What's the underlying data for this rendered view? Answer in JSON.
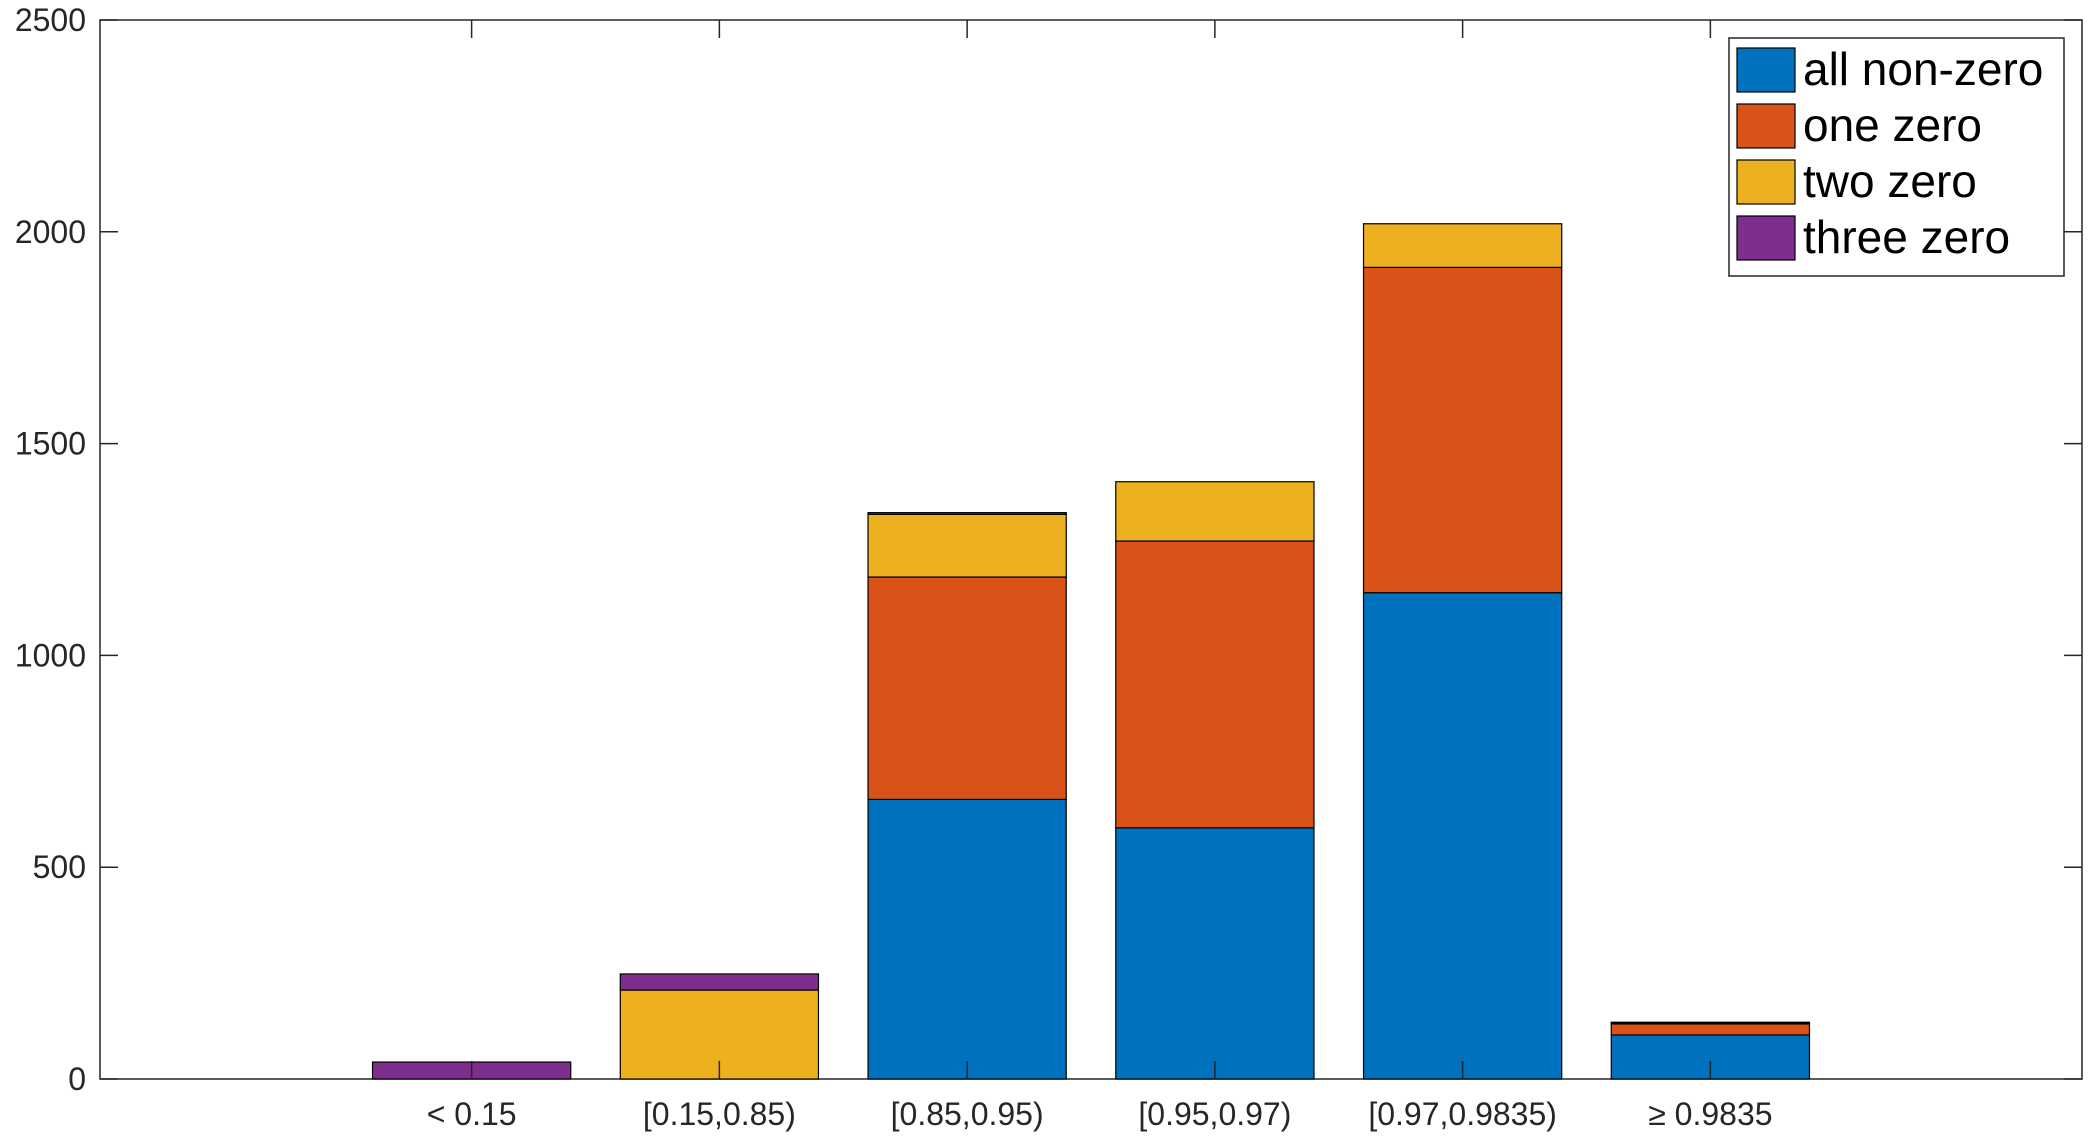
{
  "chart_data": {
    "type": "bar",
    "stacked": true,
    "title": "",
    "xlabel": "",
    "ylabel": "",
    "categories": [
      "< 0.15",
      "[0.15,0.85)",
      "[0.85,0.95)",
      "[0.95,0.97)",
      "[0.97,0.9835)",
      "≥ 0.9835"
    ],
    "ylim": [
      0,
      2500
    ],
    "yticks": [
      0,
      500,
      1000,
      1500,
      2000,
      2500
    ],
    "grid": false,
    "legend_position": "top-right",
    "series": [
      {
        "name": "all non-zero",
        "color": "#0072BD",
        "values": [
          0,
          0,
          660,
          593,
          1148,
          104
        ]
      },
      {
        "name": "one zero",
        "color": "#D95319",
        "values": [
          0,
          0,
          525,
          677,
          768,
          26
        ]
      },
      {
        "name": "two zero",
        "color": "#EDB120",
        "values": [
          0,
          210,
          148,
          140,
          103,
          2
        ]
      },
      {
        "name": "three zero",
        "color": "#7E2F8E",
        "values": [
          40,
          38,
          4,
          0,
          0,
          2
        ]
      }
    ]
  }
}
